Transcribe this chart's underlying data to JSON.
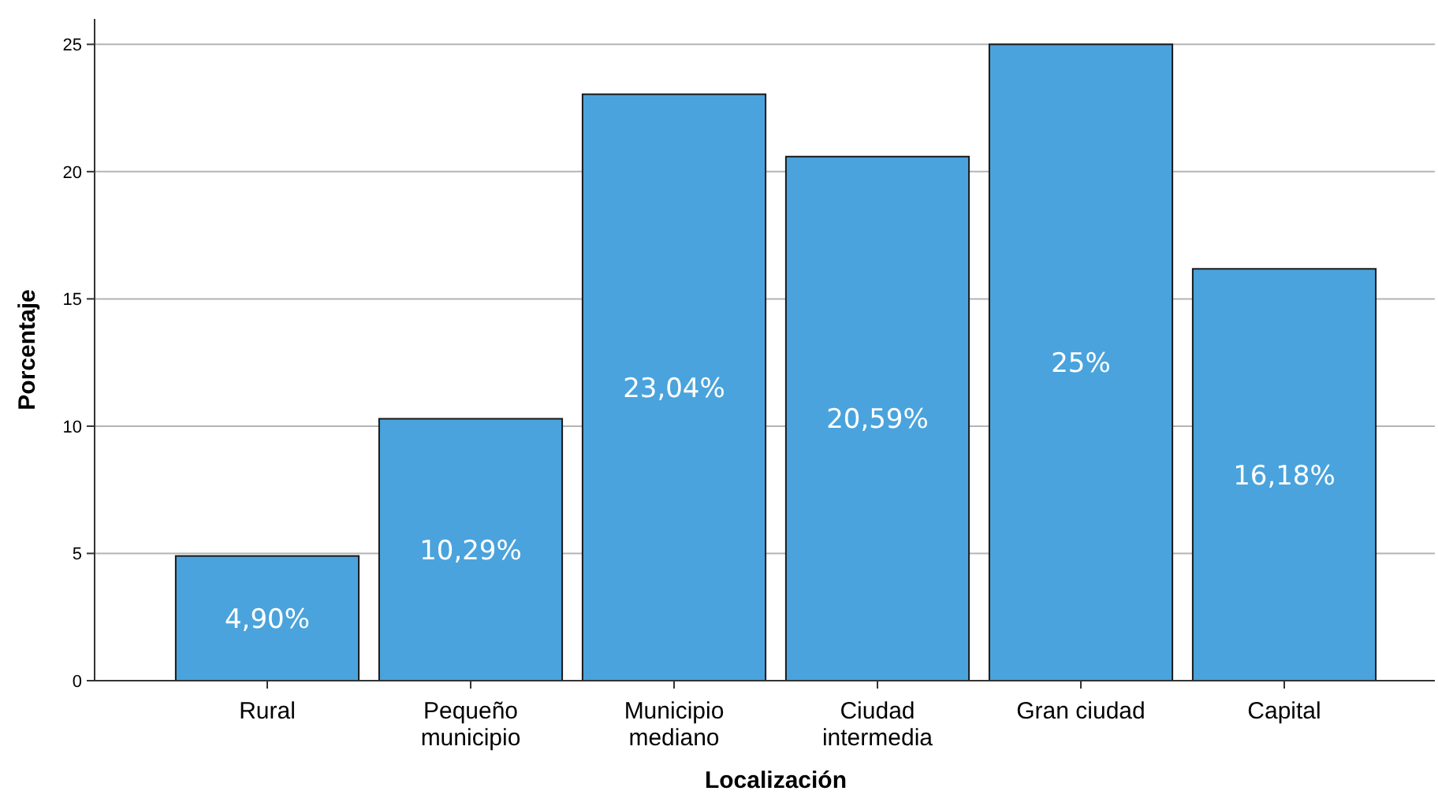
{
  "chart_data": {
    "type": "bar",
    "xlabel": "Localización",
    "ylabel": "Porcentaje",
    "categories": [
      "Rural",
      "Pequeño\nmunicipio",
      "Municipio\nmediano",
      "Ciudad\nintermedia",
      "Gran ciudad",
      "Capital"
    ],
    "values": [
      4.9,
      10.29,
      23.04,
      20.59,
      25,
      16.18
    ],
    "value_labels": [
      "4,90%",
      "10,29%",
      "23,04%",
      "20,59%",
      "25%",
      "16,18%"
    ],
    "color": "#4aa3dc",
    "ylim": [
      0,
      26
    ],
    "yticks": [
      0,
      5,
      10,
      15,
      20,
      25
    ],
    "grid": "y"
  }
}
